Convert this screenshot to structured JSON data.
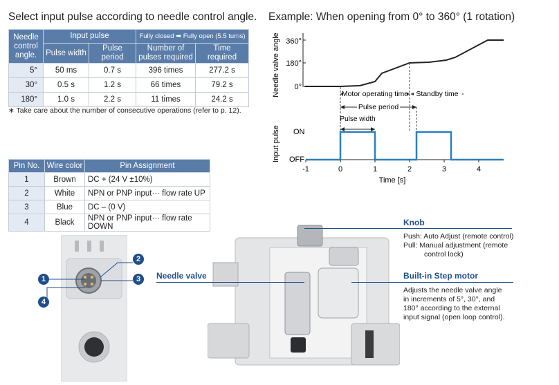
{
  "left_title": "Select input pulse according to needle control angle.",
  "pulse_table": {
    "h_angle": "Needle control angle.",
    "h_input_pulse": "Input pulse",
    "h_full_range": "Fully closed ➡ Fully open (5.5 turns)",
    "h_width": "Pulse width",
    "h_period": "Pulse period",
    "h_number": "Number of pulses required",
    "h_time": "Time required",
    "rows": [
      {
        "angle": "5°",
        "width": "50 ms",
        "period": "0.7 s",
        "pulses": "396 times",
        "time": "277.2 s"
      },
      {
        "angle": "30°",
        "width": "0.5 s",
        "period": "1.2 s",
        "pulses": "66 times",
        "time": "79.2 s"
      },
      {
        "angle": "180°",
        "width": "1.0 s",
        "period": "2.2 s",
        "pulses": "11 times",
        "time": "24.2 s"
      }
    ]
  },
  "note": "∗  Take care about the number of consecutive operations (refer to p. 12).",
  "pin_table": {
    "h_pin": "Pin No.",
    "h_color": "Wire color",
    "h_assign": "Pin Assignment",
    "rows": [
      {
        "pin": "1",
        "color": "Brown",
        "assign": "DC + (24 V ±10%)"
      },
      {
        "pin": "2",
        "color": "White",
        "assign": "NPN or PNP input··· flow rate UP"
      },
      {
        "pin": "3",
        "color": "Blue",
        "assign": "DC – (0 V)"
      },
      {
        "pin": "4",
        "color": "Black",
        "assign": "NPN or PNP input··· flow rate DOWN"
      }
    ]
  },
  "example_title": "Example: When opening from 0° to 360° (1 rotation)",
  "timing": {
    "y_label_top": "Needle valve angle",
    "y_label_bottom": "Input pulse",
    "angle_ticks": [
      "360°",
      "180°",
      "0°"
    ],
    "pulse_ticks": [
      "ON",
      "OFF"
    ],
    "x_ticks": [
      "-1",
      "0",
      "1",
      "2",
      "3",
      "4"
    ],
    "x_label": "Time [s]",
    "motor_time": "Motor operating time",
    "standby_time": "Standby time",
    "pulse_period": "Pulse period",
    "pulse_width": "Pulse width"
  },
  "chart_data": {
    "type": "line",
    "xlabel": "Time [s]",
    "series": [
      {
        "values_x": [
          -1,
          0,
          0.6,
          1.0,
          1.2,
          2.0,
          2.2,
          2.8,
          3.2,
          4.2,
          4.7
        ],
        "values_y": [
          0,
          0,
          5,
          25,
          90,
          180,
          180,
          190,
          230,
          360,
          360
        ]
      },
      {
        "values_x": [
          -1,
          0,
          0,
          1,
          1,
          2.2,
          2.2,
          3.2,
          3.2,
          4.7
        ],
        "values_y": [
          0,
          0,
          1,
          1,
          0,
          0,
          1,
          1,
          0,
          0
        ]
      }
    ]
  },
  "pin_badges": [
    "1",
    "2",
    "3",
    "4"
  ],
  "knob": {
    "title": "Knob",
    "push": "Push: Auto Adjust (remote control)",
    "pull1": "Pull: Manual adjustment (remote",
    "pull2": "control lock)"
  },
  "needle_valve_label": "Needle valve",
  "motor": {
    "title": "Built-in Step motor",
    "lines": [
      "Adjusts the needle valve angle",
      "in increments of 5°, 30°, and",
      "180° according to the external",
      "input signal (open loop control)."
    ]
  },
  "colors": {
    "header": "#5a7ca9",
    "accent": "#1f4e8c",
    "pulse_line": "#2a7fbf"
  }
}
